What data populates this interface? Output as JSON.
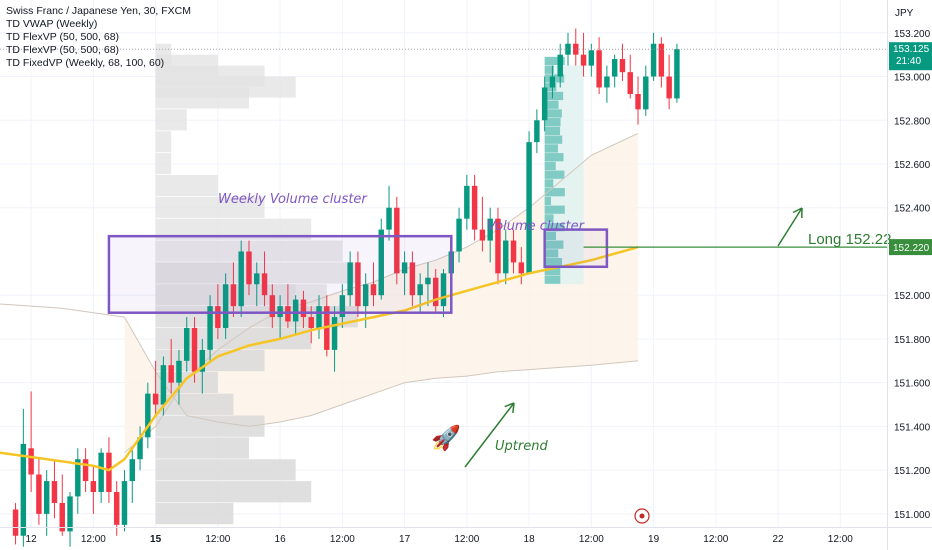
{
  "legend": {
    "symbol": "Swiss Franc / Japanese Yen, 30, FXCM",
    "indicators": [
      "TD VWAP (Weekly)",
      "TD FlexVP (50, 500, 68)",
      "TD FlexVP (50, 500, 68)",
      "TD FixedVP (Weekly, 68, 100, 60)"
    ]
  },
  "currency_label": "JPY",
  "price_axis": {
    "ticks": [
      "153.200",
      "153.000",
      "152.800",
      "152.600",
      "152.400",
      "151.800",
      "151.600",
      "151.400",
      "151.200",
      "151.000"
    ],
    "tick_values": [
      153.2,
      153.0,
      152.8,
      152.6,
      152.4,
      151.8,
      151.6,
      151.4,
      151.2,
      151.0
    ],
    "plain_ticks": [
      {
        "label": "152.000",
        "value": 152.0
      }
    ],
    "current_price": {
      "label": "153.125",
      "countdown": "21:40",
      "value": 153.125,
      "color": "#089981"
    },
    "level_badge": {
      "label": "152.220",
      "value": 152.22,
      "color": "#388e3c"
    }
  },
  "time_axis": {
    "labels": [
      "12",
      "12:00",
      "15",
      "12:00",
      "16",
      "12:00",
      "17",
      "12:00",
      "18",
      "12:00",
      "19",
      "12:00",
      "22",
      "12:00"
    ],
    "bold": [
      false,
      false,
      true,
      false,
      false,
      false,
      false,
      false,
      false,
      false,
      false,
      false,
      false,
      false
    ],
    "bar_index": [
      -12,
      -4,
      4,
      12,
      20,
      28,
      36,
      44,
      52,
      60,
      68,
      76,
      84,
      92
    ]
  },
  "annotations": {
    "weekly_cluster": "Weekly Volume cluster",
    "volume_cluster": "Volume cluster",
    "long_label": "Long 152.22",
    "uptrend": "Uptrend",
    "rocket": "🚀",
    "colors": {
      "box": "#7e57c2",
      "arrow": "#2e7d32",
      "level": "#388e3c",
      "vwap": "#f5c525",
      "band": "#d1c7bd"
    }
  },
  "chart_data": {
    "type": "candlestick",
    "symbol": "CHFJPY",
    "timeframe": "30",
    "y_range": [
      150.94,
      153.35
    ],
    "bar_domain": [
      -16,
      98
    ],
    "ohlc": [
      [
        151.02,
        151.05,
        150.86,
        150.9
      ],
      [
        150.9,
        151.48,
        150.85,
        151.32
      ],
      [
        151.3,
        151.56,
        151.1,
        151.18
      ],
      [
        151.18,
        151.26,
        150.95,
        151.0
      ],
      [
        151.0,
        151.2,
        150.9,
        151.15
      ],
      [
        151.15,
        151.25,
        150.98,
        151.05
      ],
      [
        151.05,
        151.18,
        150.9,
        150.92
      ],
      [
        150.92,
        151.1,
        150.85,
        151.08
      ],
      [
        151.08,
        151.3,
        151.0,
        151.25
      ],
      [
        151.25,
        151.3,
        151.1,
        151.15
      ],
      [
        151.15,
        151.22,
        151.0,
        151.1
      ],
      [
        151.1,
        151.3,
        151.05,
        151.28
      ],
      [
        151.28,
        151.35,
        151.05,
        151.1
      ],
      [
        151.1,
        151.15,
        150.9,
        150.95
      ],
      [
        150.95,
        151.2,
        150.92,
        151.15
      ],
      [
        151.15,
        151.3,
        151.05,
        151.25
      ],
      [
        151.25,
        151.4,
        151.2,
        151.35
      ],
      [
        151.35,
        151.6,
        151.3,
        151.55
      ],
      [
        151.55,
        151.7,
        151.45,
        151.5
      ],
      [
        151.5,
        151.72,
        151.45,
        151.68
      ],
      [
        151.68,
        151.8,
        151.55,
        151.6
      ],
      [
        151.6,
        151.75,
        151.5,
        151.7
      ],
      [
        151.7,
        151.9,
        151.65,
        151.85
      ],
      [
        151.85,
        151.9,
        151.6,
        151.65
      ],
      [
        151.65,
        151.8,
        151.55,
        151.75
      ],
      [
        151.75,
        152.0,
        151.7,
        151.95
      ],
      [
        151.95,
        152.05,
        151.8,
        151.85
      ],
      [
        151.85,
        152.1,
        151.8,
        152.05
      ],
      [
        152.05,
        152.15,
        151.9,
        151.95
      ],
      [
        151.95,
        152.25,
        151.9,
        152.2
      ],
      [
        152.2,
        152.25,
        152.0,
        152.05
      ],
      [
        152.05,
        152.15,
        151.95,
        152.1
      ],
      [
        152.1,
        152.2,
        151.95,
        152.0
      ],
      [
        152.0,
        152.05,
        151.85,
        151.9
      ],
      [
        151.9,
        152.0,
        151.8,
        151.95
      ],
      [
        151.95,
        152.05,
        151.85,
        151.88
      ],
      [
        151.88,
        152.0,
        151.82,
        151.98
      ],
      [
        151.98,
        152.02,
        151.85,
        151.9
      ],
      [
        151.9,
        151.95,
        151.78,
        151.85
      ],
      [
        151.85,
        152.0,
        151.8,
        151.95
      ],
      [
        151.95,
        152.0,
        151.72,
        151.75
      ],
      [
        151.75,
        151.95,
        151.65,
        151.9
      ],
      [
        151.9,
        152.05,
        151.85,
        152.0
      ],
      [
        152.0,
        152.2,
        151.95,
        152.15
      ],
      [
        152.15,
        152.2,
        151.9,
        151.95
      ],
      [
        151.95,
        152.1,
        151.85,
        152.05
      ],
      [
        152.05,
        152.15,
        151.95,
        152.0
      ],
      [
        152.0,
        152.35,
        151.98,
        152.3
      ],
      [
        152.3,
        152.5,
        152.25,
        152.4
      ],
      [
        152.4,
        152.45,
        152.05,
        152.1
      ],
      [
        152.1,
        152.2,
        152.0,
        152.15
      ],
      [
        152.15,
        152.2,
        151.95,
        152.0
      ],
      [
        152.0,
        152.1,
        151.92,
        152.05
      ],
      [
        152.05,
        152.15,
        151.95,
        152.08
      ],
      [
        152.08,
        152.12,
        151.92,
        151.95
      ],
      [
        151.95,
        152.12,
        151.9,
        152.1
      ],
      [
        152.1,
        152.25,
        152.05,
        152.2
      ],
      [
        152.2,
        152.4,
        152.15,
        152.35
      ],
      [
        152.35,
        152.55,
        152.3,
        152.5
      ],
      [
        152.5,
        152.55,
        152.25,
        152.3
      ],
      [
        152.3,
        152.45,
        152.2,
        152.25
      ],
      [
        152.25,
        152.4,
        152.15,
        152.35
      ],
      [
        152.35,
        152.4,
        152.05,
        152.1
      ],
      [
        152.1,
        152.3,
        152.05,
        152.25
      ],
      [
        152.25,
        152.3,
        152.1,
        152.15
      ],
      [
        152.15,
        152.22,
        152.05,
        152.1
      ],
      [
        152.1,
        152.75,
        152.1,
        152.7
      ],
      [
        152.7,
        152.85,
        152.65,
        152.8
      ],
      [
        152.8,
        153.0,
        152.75,
        152.95
      ],
      [
        152.95,
        153.05,
        152.9,
        153.0
      ],
      [
        153.0,
        153.15,
        152.95,
        153.1
      ],
      [
        153.1,
        153.2,
        153.05,
        153.15
      ],
      [
        153.15,
        153.22,
        153.05,
        153.1
      ],
      [
        153.1,
        153.2,
        153.0,
        153.05
      ],
      [
        153.05,
        153.15,
        153.0,
        153.12
      ],
      [
        153.12,
        153.18,
        152.92,
        152.95
      ],
      [
        152.95,
        153.05,
        152.88,
        153.0
      ],
      [
        153.0,
        153.1,
        152.95,
        153.08
      ],
      [
        153.08,
        153.15,
        152.98,
        153.02
      ],
      [
        153.02,
        153.1,
        152.9,
        152.92
      ],
      [
        152.92,
        153.0,
        152.78,
        152.85
      ],
      [
        152.85,
        153.05,
        152.82,
        153.0
      ],
      [
        153.0,
        153.2,
        152.98,
        153.15
      ],
      [
        153.15,
        153.18,
        152.95,
        153.0
      ],
      [
        153.0,
        153.1,
        152.85,
        152.9
      ],
      [
        152.9,
        153.15,
        152.88,
        153.125
      ]
    ],
    "ohlc_start_index": -14,
    "vwap": {
      "x": [
        -16,
        -12,
        -8,
        -6,
        -4,
        -2,
        0,
        4,
        8,
        12,
        16,
        20,
        24,
        28,
        32,
        36,
        40,
        44,
        48,
        52,
        56,
        60,
        66
      ],
      "y": [
        151.28,
        151.26,
        151.24,
        151.23,
        151.22,
        151.2,
        151.25,
        151.45,
        151.62,
        151.72,
        151.77,
        151.8,
        151.84,
        151.87,
        151.9,
        151.93,
        151.98,
        152.02,
        152.06,
        152.1,
        152.13,
        152.16,
        152.22
      ]
    },
    "upper_band": {
      "x": [
        0,
        4,
        8,
        12,
        16,
        20,
        24,
        28,
        32,
        36,
        40,
        44,
        48,
        52,
        56,
        60,
        66
      ],
      "y": [
        151.28,
        151.4,
        151.62,
        151.75,
        151.85,
        151.93,
        151.97,
        152.02,
        152.06,
        152.12,
        152.16,
        152.22,
        152.3,
        152.4,
        152.52,
        152.64,
        152.74
      ]
    },
    "lower_band": {
      "x": [
        -16,
        -12,
        -8,
        -4,
        0,
        4,
        8,
        12,
        16,
        20,
        24,
        28,
        32,
        36,
        40,
        44,
        48,
        52,
        56,
        60,
        66
      ],
      "y": [
        151.96,
        151.95,
        151.94,
        151.92,
        151.9,
        151.65,
        151.45,
        151.42,
        151.4,
        151.42,
        151.45,
        151.5,
        151.55,
        151.6,
        151.62,
        151.63,
        151.65,
        151.66,
        151.67,
        151.68,
        151.7
      ]
    },
    "weekly_volume_profile": {
      "base_bar": 4,
      "color": "#dcdcdc",
      "levels": [
        152.1,
        152.0,
        151.9,
        151.8,
        151.7,
        151.6,
        151.5,
        151.4,
        151.3,
        151.2,
        151.1,
        151.0
      ],
      "widths": [
        10,
        18,
        26,
        20,
        14,
        8,
        10,
        14,
        12,
        18,
        20,
        10
      ]
    },
    "fixed_volume_profile": {
      "base_bar": 4,
      "color": "#e2e2e2",
      "levels": [
        153.1,
        153.05,
        153.0,
        152.95,
        152.9,
        152.8,
        152.7,
        152.6,
        152.5,
        152.4,
        152.3,
        152.2,
        152.1,
        152.0,
        151.9,
        151.8,
        151.7
      ],
      "widths": [
        2,
        8,
        14,
        18,
        12,
        4,
        2,
        2,
        8,
        14,
        20,
        24,
        26,
        22,
        14,
        8,
        4
      ]
    },
    "volume_cluster_profile": {
      "base_bar": 54,
      "color": "#80cbc4",
      "price_range": [
        152.05,
        153.05
      ],
      "value_area_end_bar": 59
    },
    "weekly_cluster_box": {
      "bar_range": [
        -2,
        42
      ],
      "price_range": [
        151.92,
        152.27
      ]
    },
    "volume_cluster_box": {
      "bar_range": [
        54,
        62
      ],
      "price_range": [
        152.13,
        152.3
      ]
    },
    "long_level": {
      "price": 152.22,
      "bar_start": 59
    }
  }
}
